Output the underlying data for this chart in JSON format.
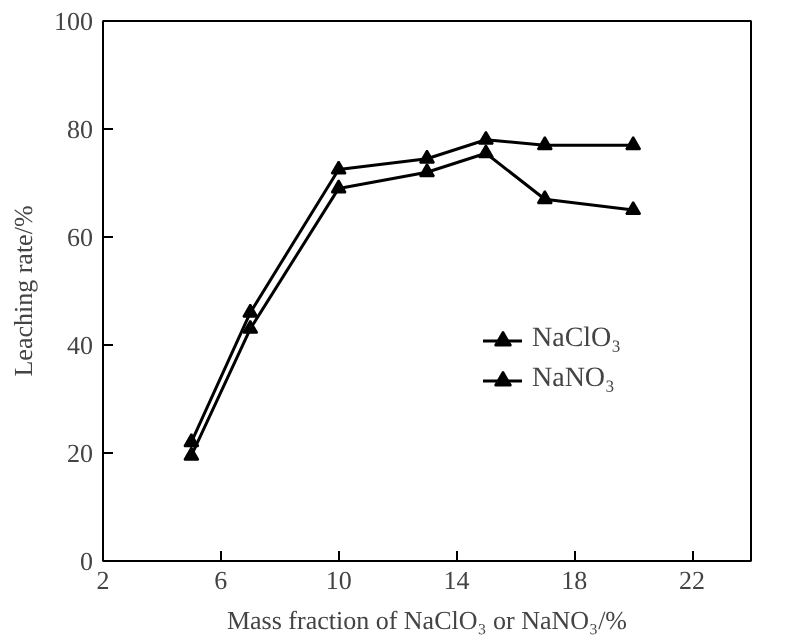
{
  "chart_data": {
    "type": "line",
    "xlabel": "Mass fraction of NaClO₃ or NaNO₃/%",
    "ylabel": "Leaching rate/%",
    "x": [
      5,
      7,
      10,
      13,
      15,
      17,
      20
    ],
    "series": [
      {
        "name": "NaClO₃",
        "color": "#000000",
        "marker": "triangle",
        "values": [
          19.5,
          43,
          69,
          72,
          75.5,
          67,
          65
        ]
      },
      {
        "name": "NaNO₃",
        "color": "#000000",
        "marker": "triangle",
        "values": [
          22,
          46,
          72.5,
          74.5,
          78,
          77,
          77
        ]
      }
    ],
    "xlim": [
      2,
      24
    ],
    "xticks": [
      2,
      6,
      10,
      14,
      18,
      22
    ],
    "ylim": [
      0,
      100
    ],
    "yticks": [
      0,
      20,
      40,
      60,
      80,
      100
    ],
    "grid": false,
    "legend": "right",
    "line_style": "solid"
  }
}
